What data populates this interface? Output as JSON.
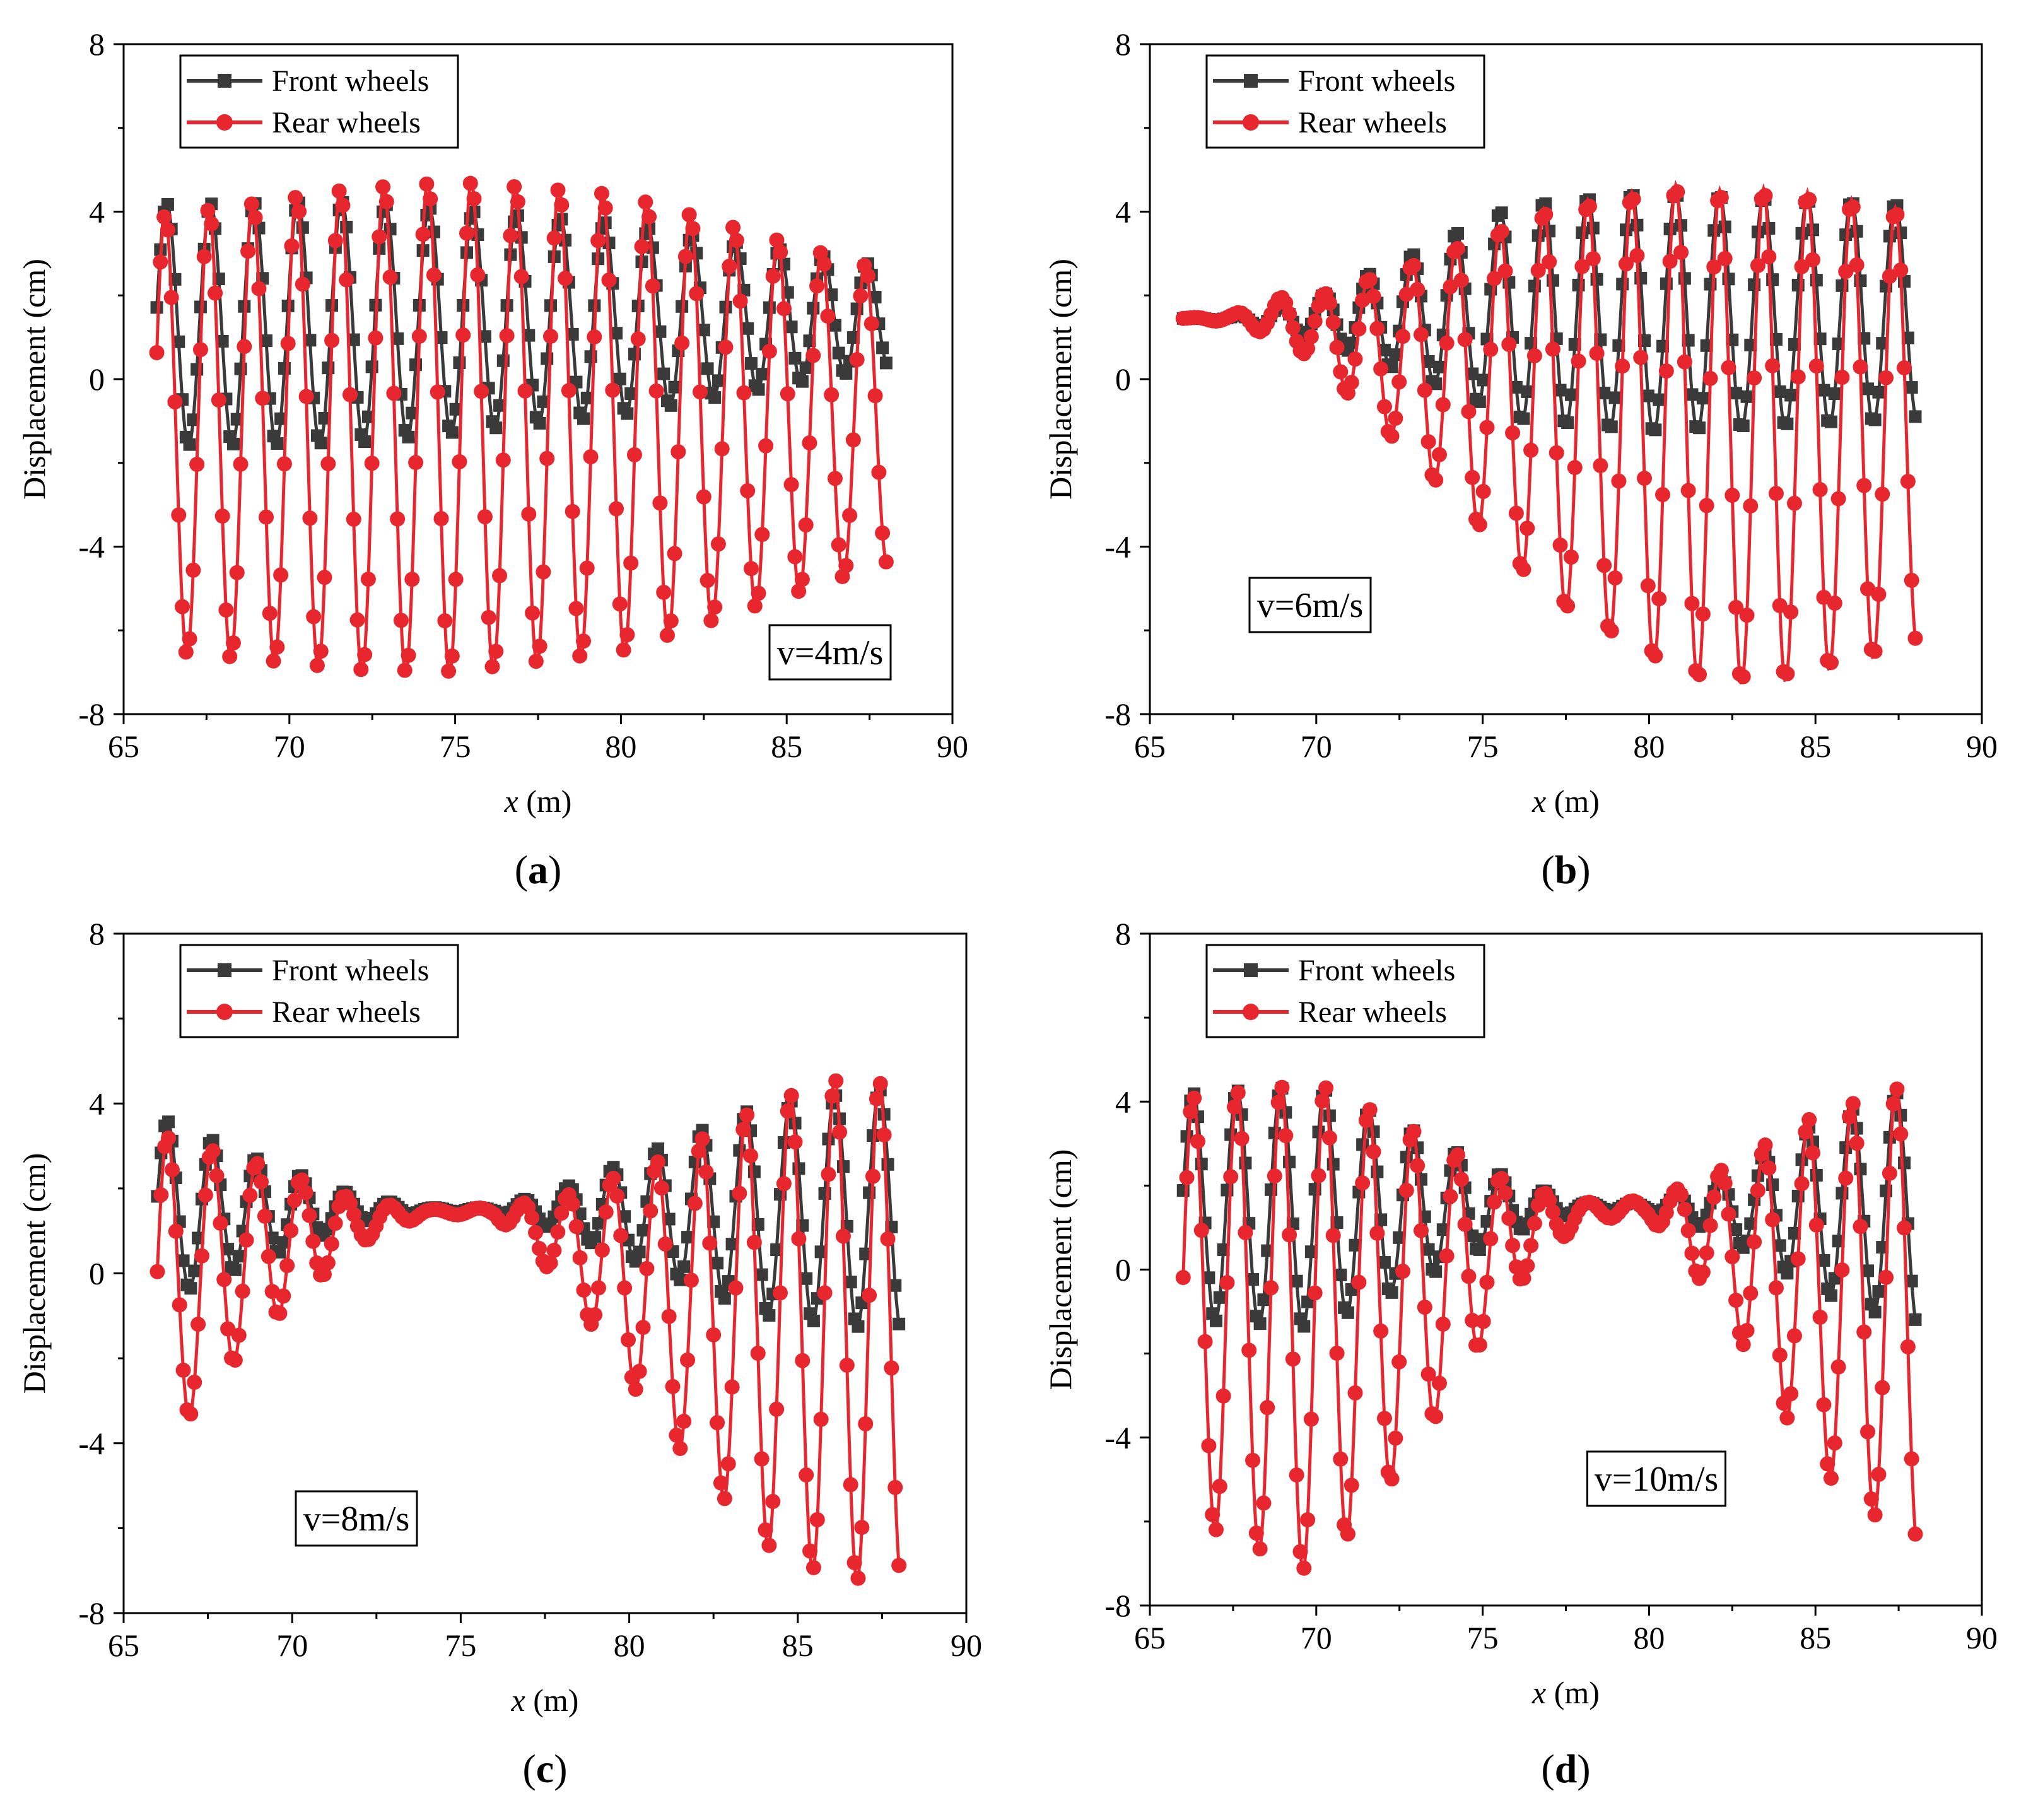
{
  "figure": {
    "series_colors": {
      "front": "#3a3a3a",
      "rear": "#e8262d"
    }
  },
  "chart_data": [
    {
      "id": "a",
      "type": "line",
      "panel_label": "a",
      "annotation": "v=4m/s",
      "xlabel": {
        "italic": "x",
        "rest": " (m)"
      },
      "ylabel": "Displacement (cm)",
      "xlim": [
        65,
        90
      ],
      "ylim": [
        -8,
        8
      ],
      "xticks": [
        65,
        70,
        75,
        80,
        85,
        90
      ],
      "yticks": [
        -8,
        -4,
        0,
        4,
        8
      ],
      "legend": {
        "position": "top-left",
        "entries": [
          "Front wheels",
          "Rear wheels"
        ]
      },
      "series": [
        {
          "name": "Front wheels",
          "marker": "square",
          "x_range": [
            66,
            88
          ],
          "period": 1.32,
          "phase": 66.3,
          "center": [
            [
              66,
              1.3
            ],
            [
              88,
              1.5
            ]
          ],
          "amplitude": [
            [
              66,
              2.9
            ],
            [
              72,
              2.9
            ],
            [
              80,
              2.3
            ],
            [
              88,
              1.2
            ]
          ]
        },
        {
          "name": "Rear wheels",
          "marker": "circle",
          "x_range": [
            66,
            88
          ],
          "period": 1.32,
          "phase": 66.25,
          "center": [
            [
              66,
              -1.3
            ],
            [
              88,
              -0.9
            ]
          ],
          "amplitude": [
            [
              66,
              5.2
            ],
            [
              72,
              5.8
            ],
            [
              75,
              5.9
            ],
            [
              80,
              5.5
            ],
            [
              88,
              3.5
            ]
          ]
        }
      ]
    },
    {
      "id": "b",
      "type": "line",
      "panel_label": "b",
      "annotation": "v=6m/s",
      "xlabel": {
        "italic": "x",
        "rest": " (m)"
      },
      "ylabel": "Displacement (cm)",
      "xlim": [
        65,
        90
      ],
      "ylim": [
        -8,
        8
      ],
      "xticks": [
        65,
        70,
        75,
        80,
        85,
        90
      ],
      "yticks": [
        -8,
        -4,
        0,
        4,
        8
      ],
      "legend": {
        "position": "top-left",
        "entries": [
          "Front wheels",
          "Rear wheels"
        ]
      },
      "series": [
        {
          "name": "Front wheels",
          "marker": "square",
          "x_range": [
            66,
            88
          ],
          "period": 1.32,
          "phase": 80.8,
          "center": [
            [
              66,
              1.45
            ],
            [
              70,
              1.45
            ],
            [
              75,
              1.6
            ],
            [
              88,
              1.6
            ]
          ],
          "amplitude": [
            [
              66,
              0.0
            ],
            [
              67.5,
              0.05
            ],
            [
              70,
              0.5
            ],
            [
              73,
              1.5
            ],
            [
              76,
              2.6
            ],
            [
              80,
              2.9
            ],
            [
              88,
              2.6
            ]
          ]
        },
        {
          "name": "Rear wheels",
          "marker": "circle",
          "x_range": [
            66,
            88
          ],
          "period": 1.32,
          "phase": 80.8,
          "center": [
            [
              66,
              1.45
            ],
            [
              69,
              1.45
            ],
            [
              73,
              0.4
            ],
            [
              77,
              -0.6
            ],
            [
              82,
              -1.4
            ],
            [
              88,
              -1.2
            ]
          ],
          "amplitude": [
            [
              66,
              0.0
            ],
            [
              67.5,
              0.1
            ],
            [
              70,
              0.8
            ],
            [
              73,
              2.4
            ],
            [
              77,
              4.7
            ],
            [
              81,
              5.9
            ],
            [
              84,
              5.9
            ],
            [
              88,
              5.2
            ]
          ]
        }
      ]
    },
    {
      "id": "c",
      "type": "line",
      "panel_label": "c",
      "annotation": "v=8m/s",
      "xlabel": {
        "italic": "x",
        "rest": " (m)"
      },
      "ylabel": "Displacement (cm)",
      "xlim": [
        65,
        90
      ],
      "ylim": [
        -8,
        8
      ],
      "xticks": [
        65,
        70,
        75,
        80,
        85,
        90
      ],
      "yticks": [
        -8,
        -4,
        0,
        4,
        8
      ],
      "legend": {
        "position": "top-left",
        "entries": [
          "Front wheels",
          "Rear wheels"
        ]
      },
      "series": [
        {
          "name": "Front wheels",
          "marker": "square",
          "x_range": [
            66,
            88
          ],
          "period": 1.32,
          "phase": 66.3,
          "center": [
            [
              66,
              1.5
            ],
            [
              88,
              1.5
            ]
          ],
          "amplitude": [
            [
              66,
              2.2
            ],
            [
              69,
              1.2
            ],
            [
              72,
              0.3
            ],
            [
              74,
              0.05
            ],
            [
              76,
              0.05
            ],
            [
              78,
              0.5
            ],
            [
              81,
              1.5
            ],
            [
              84,
              2.5
            ],
            [
              88,
              2.9
            ]
          ]
        },
        {
          "name": "Rear wheels",
          "marker": "circle",
          "x_range": [
            66,
            88
          ],
          "period": 1.32,
          "phase": 66.3,
          "center": [
            [
              66,
              -0.5
            ],
            [
              69,
              0.6
            ],
            [
              72,
              1.2
            ],
            [
              74,
              1.45
            ],
            [
              76,
              1.45
            ],
            [
              78,
              0.8
            ],
            [
              81,
              -0.5
            ],
            [
              84,
              -1.2
            ],
            [
              88,
              -1.4
            ]
          ],
          "amplitude": [
            [
              66,
              3.8
            ],
            [
              69,
              2.0
            ],
            [
              72,
              0.5
            ],
            [
              74,
              0.05
            ],
            [
              76,
              0.1
            ],
            [
              78,
              1.0
            ],
            [
              81,
              3.2
            ],
            [
              84,
              5.2
            ],
            [
              86,
              5.9
            ],
            [
              88,
              5.9
            ]
          ]
        }
      ]
    },
    {
      "id": "d",
      "type": "line",
      "panel_label": "d",
      "annotation": "v=10m/s",
      "xlabel": {
        "italic": "x",
        "rest": " (m)"
      },
      "ylabel": "Displacement (cm)",
      "xlim": [
        65,
        90
      ],
      "ylim": [
        -8,
        8
      ],
      "xticks": [
        65,
        70,
        75,
        80,
        85,
        90
      ],
      "yticks": [
        -8,
        -4,
        0,
        4,
        8
      ],
      "legend": {
        "position": "top-left",
        "entries": [
          "Front wheels",
          "Rear wheels"
        ]
      },
      "series": [
        {
          "name": "Front wheels",
          "marker": "square",
          "x_range": [
            66,
            88
          ],
          "period": 1.32,
          "phase": 66.3,
          "center": [
            [
              66,
              1.5
            ],
            [
              88,
              1.5
            ]
          ],
          "amplitude": [
            [
              66,
              2.7
            ],
            [
              70,
              2.9
            ],
            [
              73,
              1.8
            ],
            [
              76,
              0.6
            ],
            [
              78,
              0.1
            ],
            [
              80,
              0.1
            ],
            [
              82,
              0.6
            ],
            [
              85,
              2.0
            ],
            [
              88,
              2.9
            ]
          ]
        },
        {
          "name": "Rear wheels",
          "marker": "circle",
          "x_range": [
            66,
            88
          ],
          "period": 1.32,
          "phase": 66.3,
          "center": [
            [
              66,
              -0.9
            ],
            [
              70,
              -1.4
            ],
            [
              73,
              -0.5
            ],
            [
              76,
              0.8
            ],
            [
              78,
              1.4
            ],
            [
              80,
              1.45
            ],
            [
              82,
              0.8
            ],
            [
              85,
              -0.5
            ],
            [
              88,
              -1.1
            ]
          ],
          "amplitude": [
            [
              66,
              5.0
            ],
            [
              70,
              5.9
            ],
            [
              73,
              3.8
            ],
            [
              76,
              1.2
            ],
            [
              78,
              0.2
            ],
            [
              80,
              0.2
            ],
            [
              82,
              1.5
            ],
            [
              85,
              4.2
            ],
            [
              88,
              5.6
            ]
          ]
        }
      ]
    }
  ]
}
